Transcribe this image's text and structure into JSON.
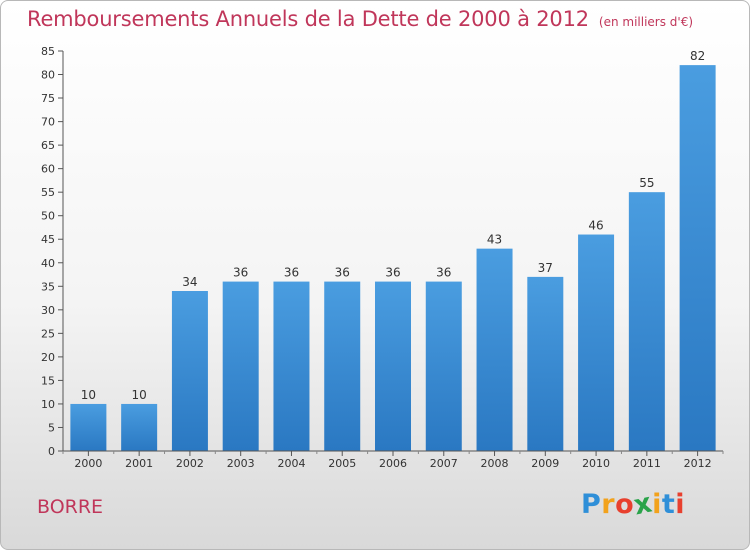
{
  "chart_data": {
    "type": "bar",
    "title": "Remboursements Annuels de la Dette de 2000 à 2012",
    "subtitle": "(en milliers d'€)",
    "categories": [
      "2000",
      "2001",
      "2002",
      "2003",
      "2004",
      "2005",
      "2006",
      "2007",
      "2008",
      "2009",
      "2010",
      "2011",
      "2012"
    ],
    "values": [
      10,
      10,
      34,
      36,
      36,
      36,
      36,
      36,
      43,
      37,
      46,
      55,
      82
    ],
    "ylim": [
      0,
      85
    ],
    "yticks": [
      0,
      5,
      10,
      15,
      20,
      25,
      30,
      35,
      40,
      45,
      50,
      55,
      60,
      65,
      70,
      75,
      80,
      85
    ],
    "grid": false,
    "bar_color": "#4a9de0",
    "bar_color_dark": "#2a78c2"
  },
  "footer": {
    "commune": "BORRE",
    "logo": [
      {
        "ch": "P",
        "color": "#2f8fd8"
      },
      {
        "ch": "r",
        "color": "#f2a21c"
      },
      {
        "ch": "o",
        "color": "#e8402e"
      },
      {
        "ch": "x",
        "color": "#2aa34a"
      },
      {
        "ch": "i",
        "color": "#f2a21c"
      },
      {
        "ch": "t",
        "color": "#2f8fd8"
      },
      {
        "ch": "i",
        "color": "#e8402e"
      }
    ]
  }
}
